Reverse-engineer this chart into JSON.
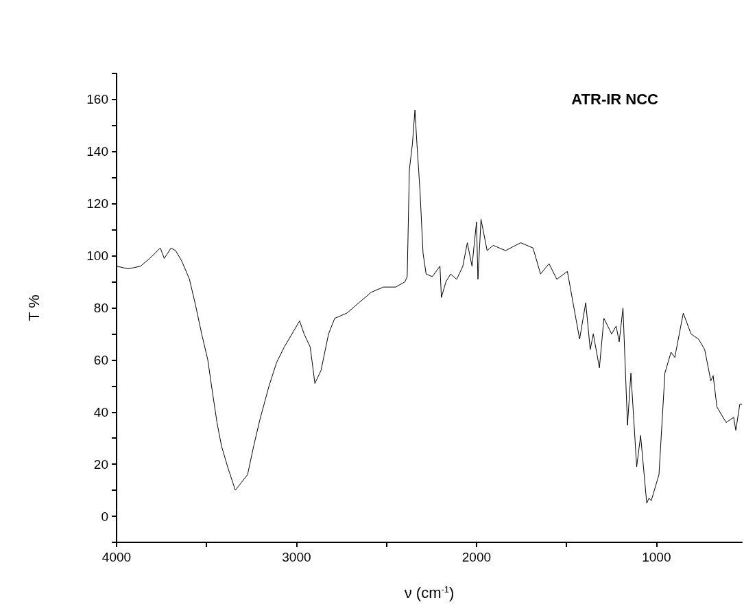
{
  "chart_data": {
    "type": "line",
    "title": "ATR-IR NCC",
    "xlabel": "ν (cm$^{-1}$)",
    "ylabel": "T %",
    "xlim": [
      4000,
      525
    ],
    "ylim": [
      -10,
      170
    ],
    "xticks": [
      4000,
      {
        "value": 3500,
        "label": null
      },
      3000,
      {
        "value": 2500,
        "label": null
      },
      2000,
      {
        "value": 1500,
        "label": null
      },
      1000
    ],
    "yticks": [
      {
        "value": -10,
        "label": null
      },
      0,
      {
        "value": 10,
        "label": null
      },
      20,
      {
        "value": 30,
        "label": null
      },
      40,
      {
        "value": 50,
        "label": null
      },
      60,
      {
        "value": 70,
        "label": null
      },
      80,
      {
        "value": 90,
        "label": null
      },
      100,
      {
        "value": 110,
        "label": null
      },
      120,
      {
        "value": 130,
        "label": null
      },
      140,
      {
        "value": 150,
        "label": null
      },
      160,
      {
        "value": 170,
        "label": null
      }
    ],
    "grid": false,
    "marker": "none",
    "line_style": "solid",
    "series": [
      {
        "color": "#000000",
        "x": [
          4000,
          3935,
          3867,
          3816,
          3757,
          3735,
          3697,
          3672,
          3638,
          3595,
          3561,
          3527,
          3493,
          3468,
          3442,
          3417,
          3383,
          3340,
          3306,
          3272,
          3238,
          3204,
          3153,
          3111,
          3068,
          3017,
          2983,
          2958,
          2924,
          2898,
          2864,
          2822,
          2788,
          2720,
          2653,
          2585,
          2517,
          2449,
          2398,
          2385,
          2373,
          2356,
          2342,
          2331,
          2314,
          2297,
          2280,
          2246,
          2203,
          2195,
          2170,
          2144,
          2110,
          2076,
          2051,
          2025,
          2000,
          1992,
          1975,
          1941,
          1907,
          1839,
          1754,
          1686,
          1644,
          1597,
          1554,
          1495,
          1461,
          1427,
          1393,
          1368,
          1351,
          1317,
          1292,
          1249,
          1224,
          1207,
          1186,
          1161,
          1142,
          1110,
          1088,
          1054,
          1041,
          1029,
          986,
          953,
          919,
          898,
          851,
          808,
          766,
          732,
          698,
          685,
          664,
          613,
          571,
          559,
          537,
          525
        ],
        "values": [
          96,
          95,
          96,
          99,
          103,
          99,
          103,
          102,
          98,
          91,
          81,
          70,
          60,
          48,
          36,
          27,
          19,
          10,
          13,
          16,
          27,
          37,
          50,
          59,
          65,
          71,
          75,
          70,
          65,
          51,
          56,
          70,
          76,
          78,
          82,
          86,
          88,
          88,
          90,
          92,
          133,
          143,
          156,
          143,
          125,
          101,
          93,
          92,
          96,
          84,
          90,
          93,
          91,
          96,
          105,
          96,
          113,
          91,
          114,
          102,
          104,
          102,
          105,
          103,
          93,
          97,
          91,
          94,
          81,
          68,
          82,
          64,
          70,
          57,
          76,
          70,
          73,
          67,
          80,
          35,
          55,
          19,
          31,
          5,
          7,
          6,
          16,
          55,
          63,
          61,
          78,
          70,
          68,
          64,
          52,
          54,
          42,
          36,
          38,
          33,
          43,
          43
        ]
      }
    ]
  }
}
